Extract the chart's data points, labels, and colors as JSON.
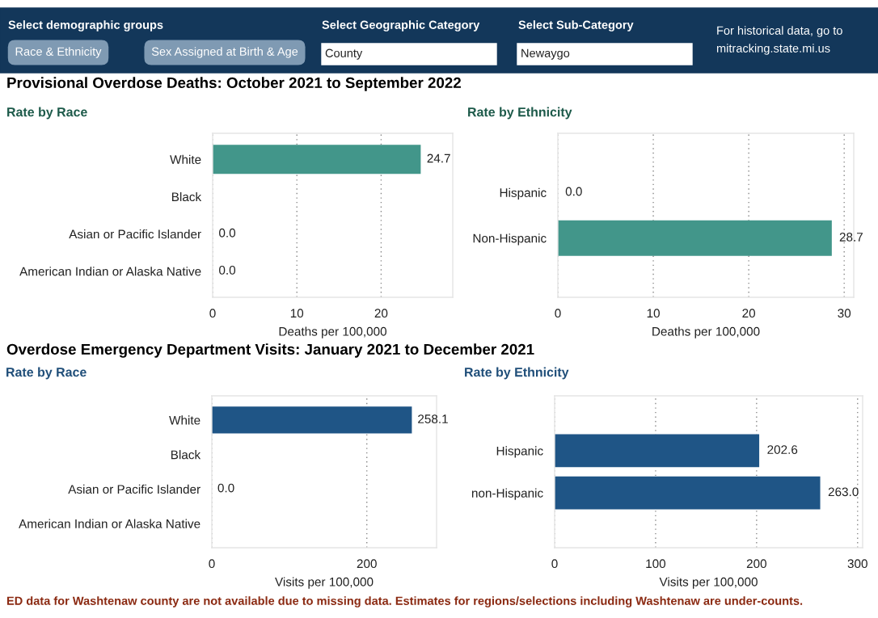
{
  "chart_data": [
    {
      "type": "other",
      "annotations": [
        "Select demographic groups",
        "Race & Ethnicity",
        "Sex Assigned at Birth & Age",
        "Select Geographic Category",
        "County",
        "Select Sub-Category",
        "Newaygo",
        "For historical data, go to",
        "mitracking.state.mi.us"
      ]
    },
    {
      "type": "bar",
      "orientation": "horizontal",
      "title": "Provisional Overdose Deaths: October 2021 to September 2022",
      "subtitle": "Rate by Race",
      "xlabel": "Deaths per 100,000",
      "categories": [
        "White",
        "Black",
        "Asian or Pacific Islander",
        "American Indian or Alaska Native"
      ],
      "values": [
        24.7,
        null,
        0.0,
        0.0
      ],
      "value_labels": [
        "24.7",
        null,
        "0.0",
        "0.0"
      ],
      "color": "#42968a",
      "xlim": [
        0,
        28.5
      ],
      "xticks": [
        0,
        10,
        20
      ],
      "grid": "x"
    },
    {
      "type": "bar",
      "orientation": "horizontal",
      "subtitle": "Rate by Ethnicity",
      "xlabel": "Deaths per 100,000",
      "categories": [
        "Hispanic",
        "Non-Hispanic"
      ],
      "values": [
        0.0,
        28.7
      ],
      "value_labels": [
        "0.0",
        "28.7"
      ],
      "color": "#42968a",
      "xlim": [
        0,
        31
      ],
      "xticks": [
        0,
        10,
        20,
        30
      ],
      "grid": "x"
    },
    {
      "type": "bar",
      "orientation": "horizontal",
      "title": "Overdose Emergency Department Visits: January 2021 to December 2021",
      "subtitle": "Rate by Race",
      "xlabel": "Visits per 100,000",
      "categories": [
        "White",
        "Black",
        "Asian or Pacific Islander",
        "American Indian or Alaska Native"
      ],
      "values": [
        258.1,
        null,
        0.0,
        null
      ],
      "value_labels": [
        "258.1",
        null,
        "0.0",
        null
      ],
      "color": "#1f5586",
      "xlim": [
        0,
        290
      ],
      "xticks": [
        0,
        200
      ],
      "grid": "x"
    },
    {
      "type": "bar",
      "orientation": "horizontal",
      "subtitle": "Rate by Ethnicity",
      "xlabel": "Visits per 100,000",
      "categories": [
        "Hispanic",
        "non-Hispanic"
      ],
      "values": [
        202.6,
        263.0
      ],
      "value_labels": [
        "202.6",
        "263.0"
      ],
      "color": "#1f5586",
      "xlim": [
        0,
        305
      ],
      "xticks": [
        0,
        100,
        200,
        300
      ],
      "grid": "x",
      "annotations": [
        "ED data for Washtenaw county are not available due to missing data. Estimates for regions/selections including Washtenaw are under-counts."
      ]
    }
  ]
}
